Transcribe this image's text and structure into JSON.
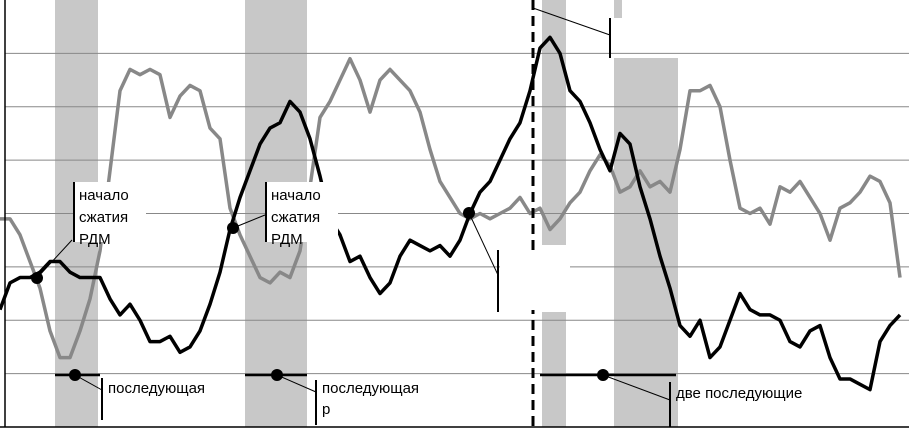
{
  "chart_data": {
    "type": "line",
    "x": [
      0,
      10,
      20,
      30,
      40,
      50,
      60,
      70,
      80,
      90,
      100,
      110,
      120,
      130,
      140,
      150,
      160,
      170,
      180,
      190,
      200,
      210,
      220,
      230,
      240,
      250,
      260,
      270,
      280,
      290,
      300,
      310,
      320,
      330,
      340,
      350,
      360,
      370,
      380,
      390,
      400,
      410,
      420,
      430,
      440,
      450,
      460,
      470,
      480,
      490,
      500,
      510,
      520,
      530,
      540,
      550,
      560,
      570,
      580,
      590,
      600,
      610,
      620,
      630,
      640,
      650,
      660,
      670,
      680,
      690,
      700,
      710,
      720,
      730,
      740,
      750,
      760,
      770,
      780,
      790,
      800,
      810,
      820,
      830,
      840,
      850,
      860,
      870,
      880,
      890,
      900
    ],
    "series": [
      {
        "color": "#888888",
        "values": [
          3.9,
          3.9,
          3.6,
          3.1,
          2.6,
          1.8,
          1.3,
          1.3,
          1.8,
          2.4,
          3.3,
          4.8,
          6.3,
          6.7,
          6.6,
          6.7,
          6.6,
          5.8,
          6.2,
          6.4,
          6.3,
          5.6,
          5.4,
          4.1,
          3.6,
          3.2,
          2.8,
          2.7,
          2.9,
          2.8,
          3.3,
          4.5,
          5.8,
          6.1,
          6.5,
          6.9,
          6.5,
          5.9,
          6.5,
          6.7,
          6.5,
          6.3,
          5.9,
          5.2,
          4.6,
          4.3,
          4.0,
          3.9,
          4.0,
          3.9,
          4.0,
          4.1,
          4.3,
          4.0,
          4.1,
          3.7,
          3.9,
          4.2,
          4.4,
          4.8,
          5.1,
          4.9,
          4.4,
          4.5,
          4.8,
          4.5,
          4.6,
          4.4,
          5.2,
          6.3,
          6.3,
          6.4,
          6.0,
          5.0,
          4.1,
          4.0,
          4.1,
          3.8,
          4.5,
          4.4,
          4.6,
          4.3,
          4.0,
          3.5,
          4.1,
          4.2,
          4.4,
          4.7,
          4.6,
          4.2,
          2.8
        ]
      },
      {
        "color": "#000000",
        "values": [
          2.2,
          2.7,
          2.8,
          2.8,
          2.9,
          3.1,
          3.1,
          2.9,
          2.8,
          2.8,
          2.8,
          2.4,
          2.1,
          2.3,
          2.0,
          1.6,
          1.6,
          1.7,
          1.4,
          1.5,
          1.8,
          2.3,
          2.9,
          3.7,
          4.3,
          4.8,
          5.3,
          5.6,
          5.7,
          6.1,
          5.9,
          5.4,
          4.7,
          3.9,
          3.6,
          3.1,
          3.2,
          2.8,
          2.5,
          2.7,
          3.2,
          3.5,
          3.4,
          3.3,
          3.4,
          3.2,
          3.5,
          4.0,
          4.4,
          4.6,
          5.0,
          5.4,
          5.7,
          6.3,
          7.1,
          7.3,
          7.0,
          6.3,
          6.1,
          5.7,
          5.2,
          4.8,
          5.5,
          5.3,
          4.5,
          3.9,
          3.2,
          2.6,
          1.9,
          1.7,
          2.0,
          1.3,
          1.5,
          2.0,
          2.5,
          2.2,
          2.1,
          2.1,
          2.0,
          1.6,
          1.5,
          1.8,
          1.9,
          1.3,
          0.9,
          0.9,
          0.8,
          0.7,
          1.6,
          1.9,
          2.1
        ]
      }
    ],
    "xlim": [
      0,
      909
    ],
    "ylim": [
      0,
      8
    ],
    "yticks": [
      1,
      2,
      3,
      4,
      5,
      6,
      7
    ],
    "grid": true,
    "annotations": [
      "начало",
      "сжатия",
      "РДМ",
      "начало",
      "сжатия",
      "РДМ",
      "последующая",
      "последующая",
      "р",
      "две последующие"
    ]
  }
}
